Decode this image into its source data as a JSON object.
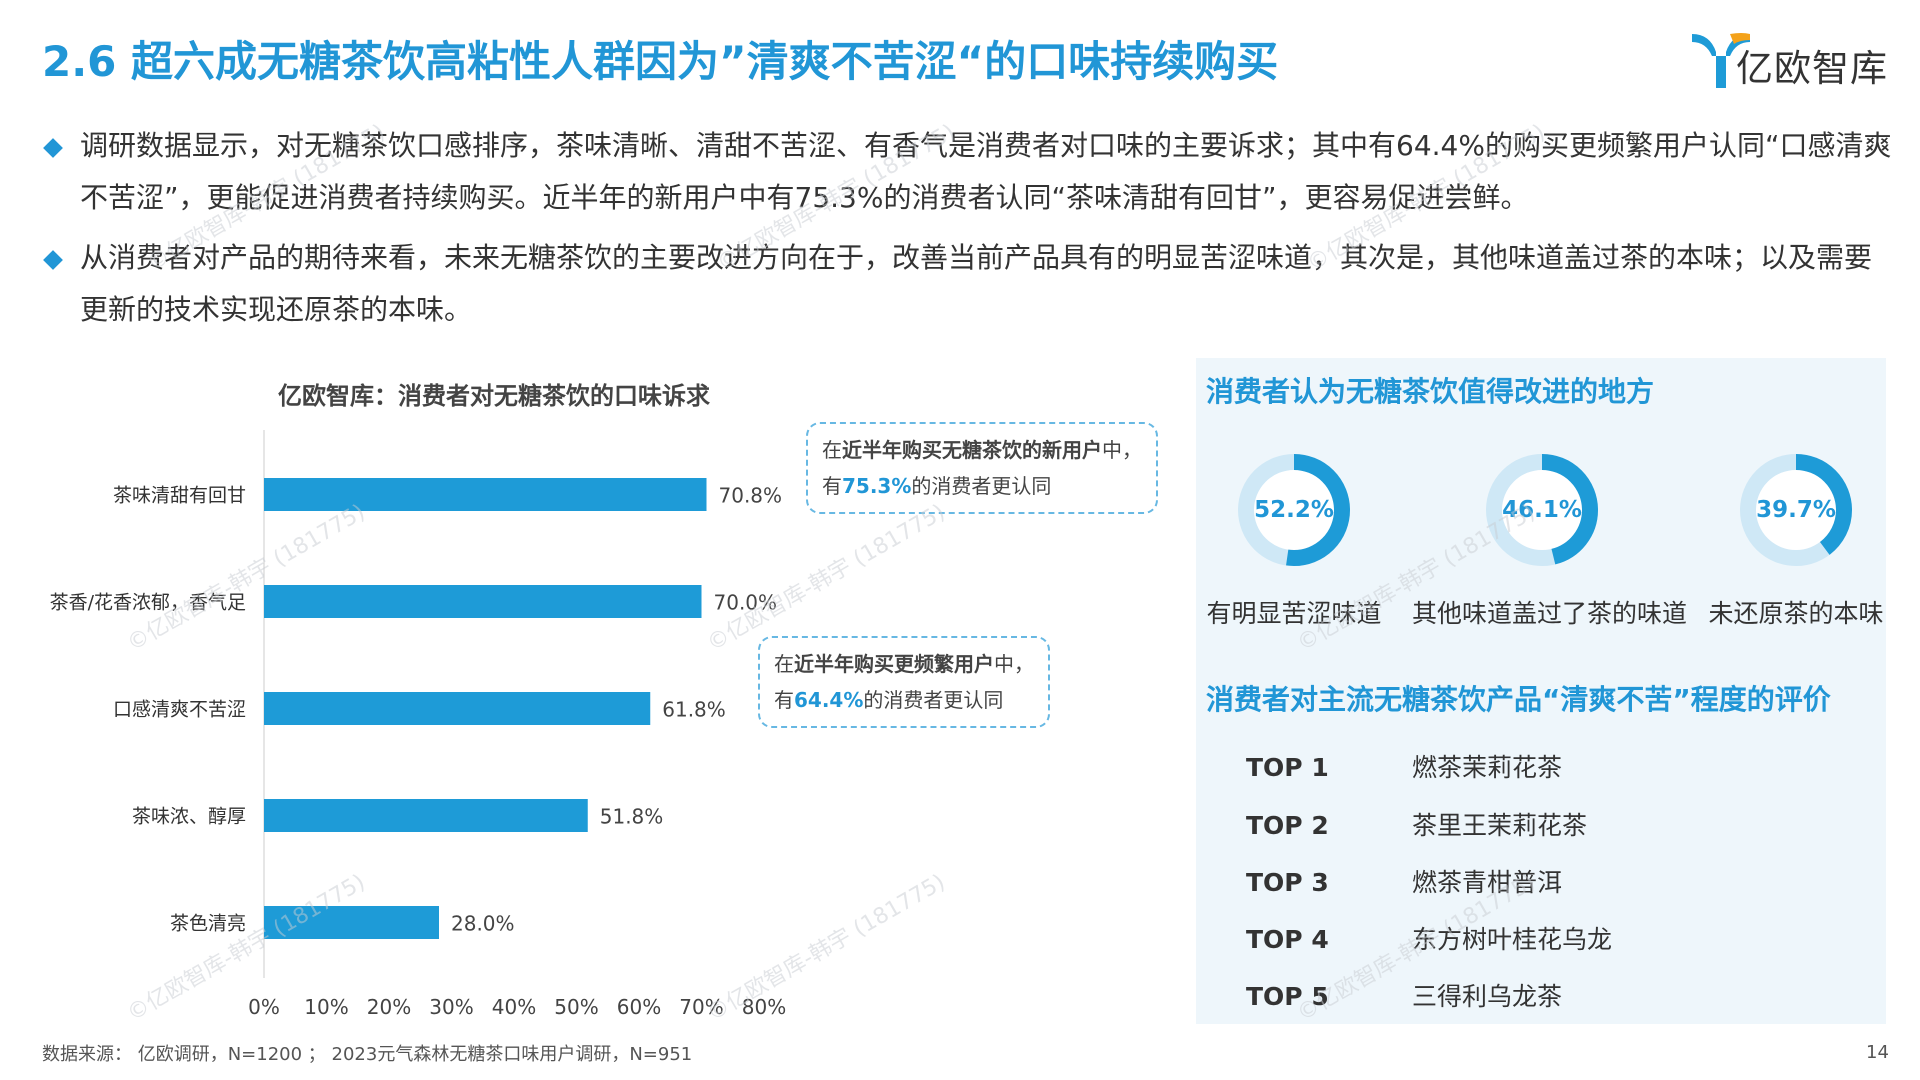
{
  "header": {
    "title": "2.6 超六成无糖茶饮高粘性人群因为”清爽不苦涩“的口味持续购买",
    "logo_text": "亿欧智库"
  },
  "bullets": [
    "调研数据显示，对无糖茶饮口感排序，茶味清晰、清甜不苦涩、有香气是消费者对口味的主要诉求；其中有64.4%的购买更频繁用户认同“口感清爽不苦涩”，更能促进消费者持续购买。近半年的新用户中有75.3%的消费者认同“茶味清甜有回甘”，更容易促进尝鲜。",
    "从消费者对产品的期待来看，未来无糖茶饮的主要改进方向在于，改善当前产品具有的明显苦涩味道，其次是，其他味道盖过茶的本味；以及需要更新的技术实现还原茶的本味。"
  ],
  "chart_data": {
    "type": "bar",
    "orientation": "horizontal",
    "title": "亿欧智库：消费者对无糖茶饮的口味诉求",
    "categories": [
      "茶味清甜有回甘",
      "茶香/花香浓郁，香气足",
      "口感清爽不苦涩",
      "茶味浓、醇厚",
      "茶色清亮"
    ],
    "values": [
      70.8,
      70.0,
      61.8,
      51.8,
      28.0
    ],
    "value_labels": [
      "70.8%",
      "70.0%",
      "61.8%",
      "51.8%",
      "28.0%"
    ],
    "xlim": [
      0,
      80
    ],
    "xticks": [
      "0%",
      "10%",
      "20%",
      "30%",
      "40%",
      "50%",
      "60%",
      "70%",
      "80%"
    ],
    "bar_color": "#1e9bd7"
  },
  "callouts": {
    "new_users": {
      "line1_prefix": "在",
      "line1_bold": "近半年购买无糖茶饮的新用户",
      "line1_suffix": "中，",
      "line2_prefix": "有",
      "line2_value": "75.3%",
      "line2_suffix": "的消费者更认同"
    },
    "frequent_users": {
      "line1_prefix": "在",
      "line1_bold": "近半年购买更频繁用户",
      "line1_suffix": "中，",
      "line2_prefix": "有",
      "line2_value": "64.4%",
      "line2_suffix": "的消费者更认同"
    }
  },
  "panel": {
    "improve_title": "消费者认为无糖茶饮值得改进的地方",
    "donuts": [
      {
        "value": 52.2,
        "label_value": "52.2%",
        "label": "有明显苦涩味道"
      },
      {
        "value": 46.1,
        "label_value": "46.1%",
        "label": "其他味道盖过了茶的味道"
      },
      {
        "value": 39.7,
        "label_value": "39.7%",
        "label": "未还原茶的本味"
      }
    ],
    "rank_title": "消费者对主流无糖茶饮产品“清爽不苦”程度的评价",
    "ranks": [
      {
        "rank": "TOP 1",
        "name": "燃茶茉莉花茶"
      },
      {
        "rank": "TOP 2",
        "name": "茶里王茉莉花茶"
      },
      {
        "rank": "TOP 3",
        "name": "燃茶青柑普洱"
      },
      {
        "rank": "TOP 4",
        "name": "东方树叶桂花乌龙"
      },
      {
        "rank": "TOP 5",
        "name": "三得利乌龙茶"
      }
    ]
  },
  "footer": {
    "source": "数据来源： 亿欧调研，N=1200 ； 2023元气森林无糖茶口味用户调研，N=951",
    "page": "14"
  },
  "watermark": "©亿欧智库-韩宇 (181775)",
  "colors": {
    "accent": "#2196d6",
    "bar": "#1e9bd7",
    "donut_track": "#cfe8f6",
    "panel_bg": "#eef6fb"
  }
}
